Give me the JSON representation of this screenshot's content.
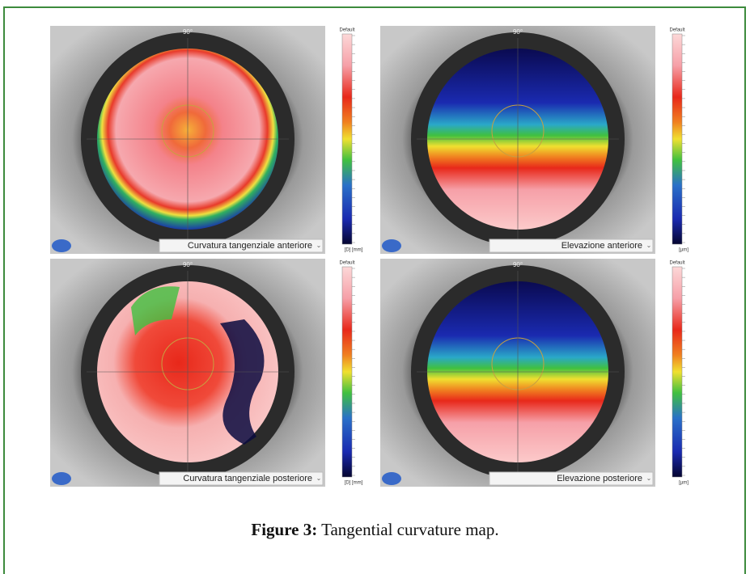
{
  "figure": {
    "panels": [
      {
        "label": "Curvatura tangenziale anteriore",
        "top_angle": "90°",
        "scale_title": "Default",
        "scale_unit": "[D]  [mm]"
      },
      {
        "label": "Elevazione anteriore",
        "top_angle": "90°",
        "scale_title": "Default",
        "scale_unit": "[µm]"
      },
      {
        "label": "Curvatura tangenziale posteriore",
        "top_angle": "90°",
        "scale_title": "Default",
        "scale_unit": "[D]  [mm]"
      },
      {
        "label": "Elevazione posteriore",
        "top_angle": "90°",
        "scale_title": "Default",
        "scale_unit": "[µm]"
      }
    ],
    "caption": {
      "label": "Figure 3:",
      "text": "Tangential curvature map."
    }
  }
}
